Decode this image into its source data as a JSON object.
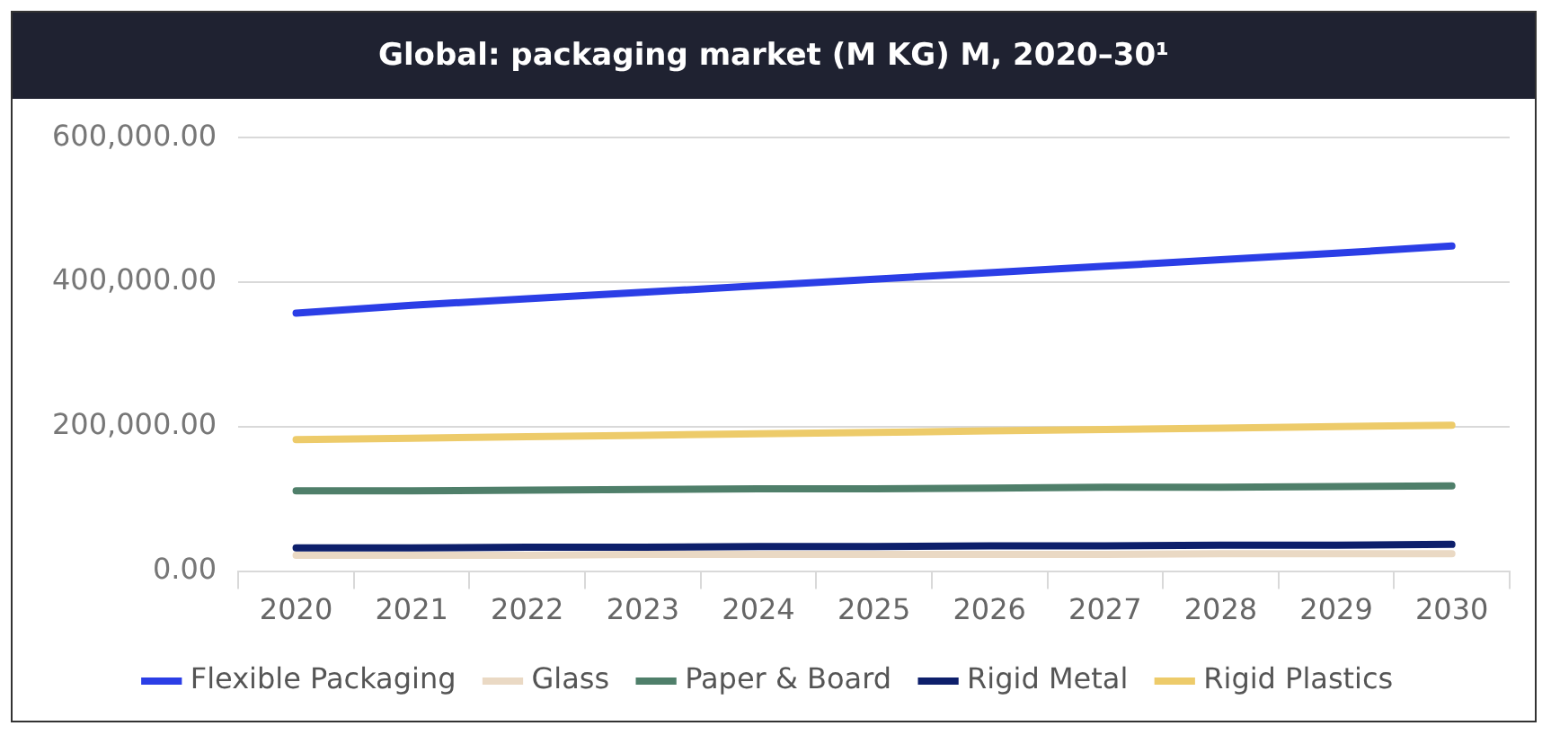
{
  "chart_data": {
    "type": "line",
    "title": "Global: packaging market (M KG) M, 2020–30¹",
    "categories": [
      "2020",
      "2021",
      "2022",
      "2023",
      "2024",
      "2025",
      "2026",
      "2027",
      "2028",
      "2029",
      "2030"
    ],
    "series": [
      {
        "name": "Flexible Packaging",
        "color": "#2b3ee6",
        "values": [
          357000,
          368000,
          377000,
          386000,
          395000,
          404000,
          413000,
          422000,
          431000,
          440000,
          450000
        ]
      },
      {
        "name": "Glass",
        "color": "#ead9c4",
        "values": [
          22000,
          22000,
          22000,
          23000,
          23000,
          23000,
          23000,
          23000,
          24000,
          24000,
          24000
        ]
      },
      {
        "name": "Paper & Board",
        "color": "#4f7f6a",
        "values": [
          111000,
          111000,
          112000,
          113000,
          114000,
          114000,
          115000,
          116000,
          116000,
          117000,
          118000
        ]
      },
      {
        "name": "Rigid Metal",
        "color": "#0d1f6b",
        "values": [
          32000,
          32000,
          33000,
          33000,
          34000,
          34000,
          35000,
          35000,
          36000,
          36000,
          37000
        ]
      },
      {
        "name": "Rigid Plastics",
        "color": "#edcb6a",
        "values": [
          182000,
          184000,
          186000,
          188000,
          190000,
          192000,
          194000,
          196000,
          198000,
          200000,
          202000
        ]
      }
    ],
    "ylim": [
      0,
      600000
    ],
    "yticks": [
      {
        "value": 0,
        "label": "0.00"
      },
      {
        "value": 200000,
        "label": "200,000.00"
      },
      {
        "value": 400000,
        "label": "400,000.00"
      },
      {
        "value": 600000,
        "label": "600,000.00"
      }
    ],
    "grid": "y",
    "legend": "bottom",
    "marker": "none",
    "line_style": "solid"
  }
}
